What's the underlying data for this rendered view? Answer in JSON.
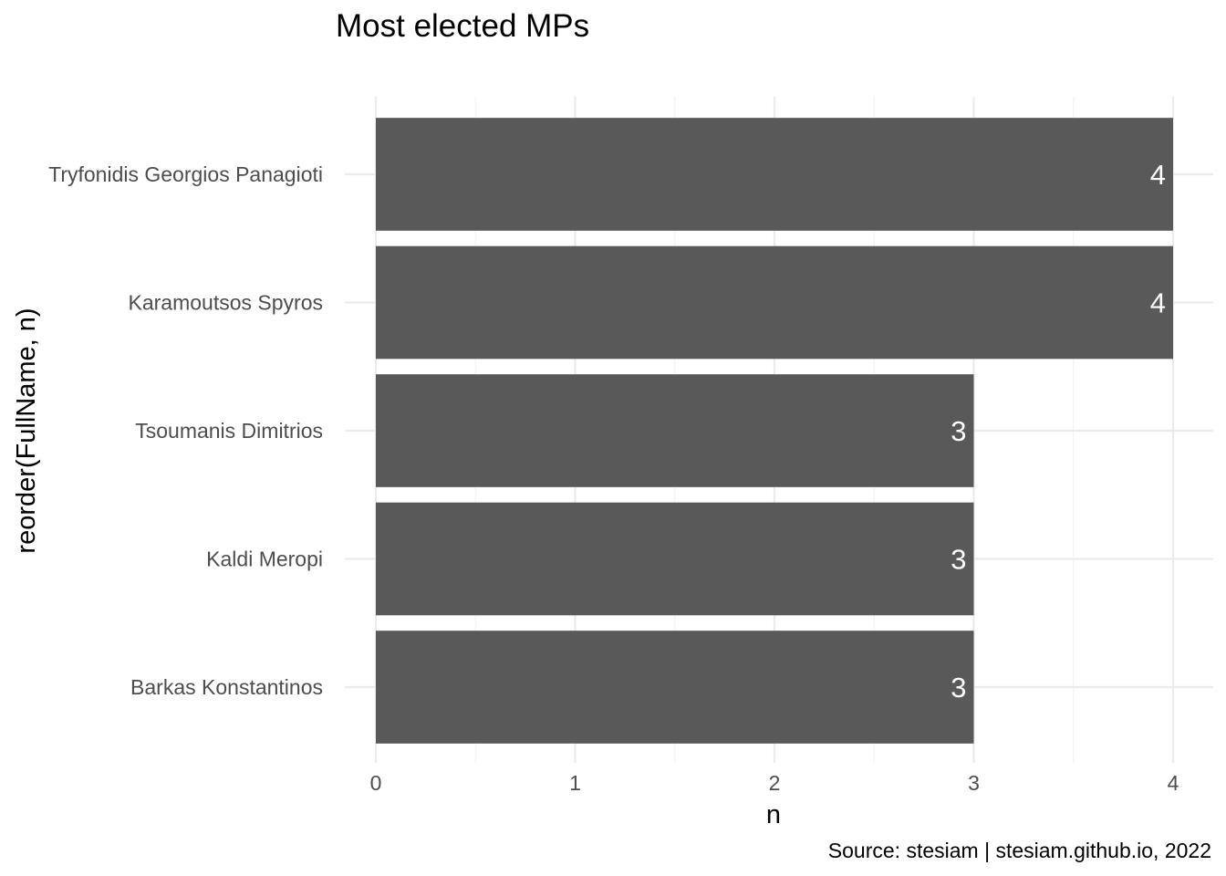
{
  "chart_data": {
    "type": "bar",
    "orientation": "horizontal",
    "title": "Most elected MPs",
    "xlabel": "n",
    "ylabel": "reorder(FullName, n)",
    "caption": "Source: stesiam | stesiam.github.io, 2022",
    "categories": [
      "Tryfonidis Georgios Panagioti",
      "Karamoutsos Spyros",
      "Tsoumanis Dimitrios",
      "Kaldi Meropi",
      "Barkas Konstantinos"
    ],
    "values": [
      4,
      4,
      3,
      3,
      3
    ],
    "data_labels": [
      "4",
      "4",
      "3",
      "3",
      "3"
    ],
    "xlim": [
      0,
      4
    ],
    "x_ticks": [
      0,
      1,
      2,
      3,
      4
    ],
    "x_tick_labels": [
      "0",
      "1",
      "2",
      "3",
      "4"
    ],
    "grid": true,
    "legend": "none",
    "bar_color": "#595959",
    "grid_color": "#ebebeb",
    "label_color": "#ffffff"
  }
}
